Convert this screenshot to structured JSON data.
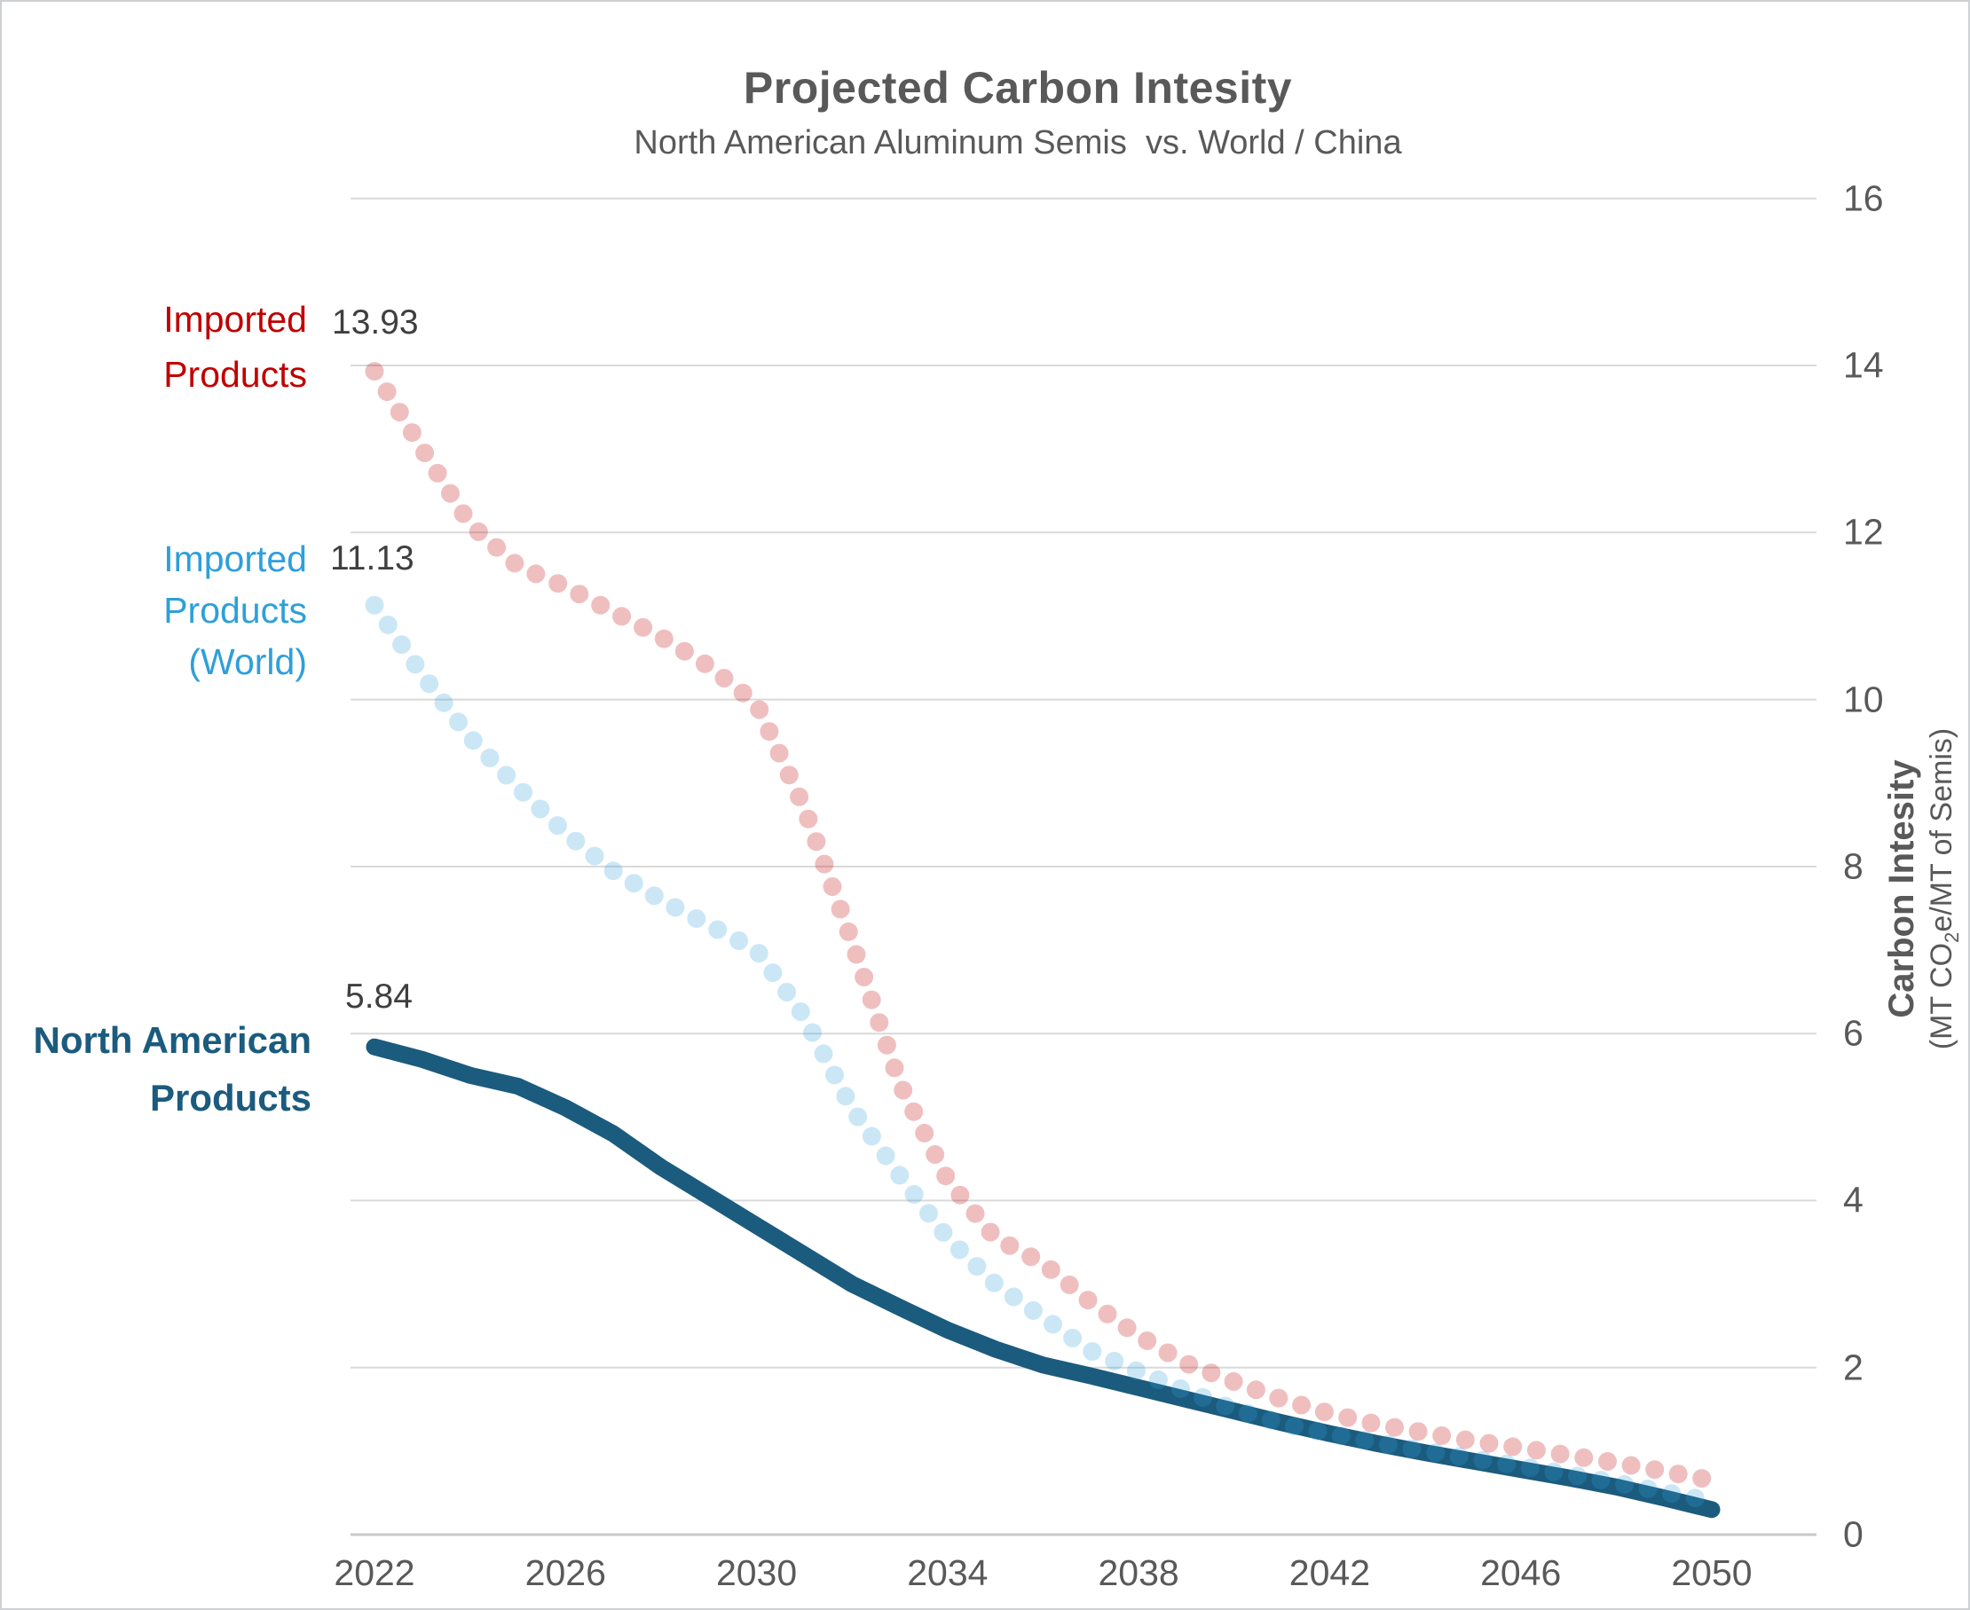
{
  "title": "Projected Carbon Intesity",
  "subtitle": "North American Aluminum Semis  vs. World / China",
  "annotations": {
    "imported_china": {
      "lines": [
        "Imported",
        "Products"
      ],
      "value": "13.93"
    },
    "imported_world": {
      "lines": [
        "Imported",
        "Products",
        "(World)"
      ],
      "value": "11.13"
    },
    "north_american": {
      "lines": [
        "North American",
        "Products"
      ],
      "value": "5.84"
    }
  },
  "y_axis": {
    "title": "Carbon Intesity",
    "subtitle_pre": "(MT CO",
    "subtitle_sub": "2",
    "subtitle_post": "e/MT of Semis)",
    "ticks": [
      0,
      2,
      4,
      6,
      8,
      10,
      12,
      14,
      16
    ],
    "min": 0,
    "max": 16
  },
  "x_axis": {
    "ticks": [
      2022,
      2026,
      2030,
      2034,
      2038,
      2042,
      2046,
      2050
    ]
  },
  "colors": {
    "china": "#C00000",
    "world": "#2E9FDA",
    "north_american": "#1B5B7E",
    "dot_opacity": 0.25,
    "value_text": "#3F3F3F",
    "axis_text": "#595959",
    "gridline": "#D9D9D9",
    "baseline": "#C9C9C9"
  },
  "chart_data": {
    "type": "line",
    "title": "Projected Carbon Intesity",
    "subtitle": "North American Aluminum Semis vs. World / China",
    "xlabel": "",
    "ylabel": "Carbon Intesity (MT CO2e/MT of Semis)",
    "ylim": [
      0,
      16
    ],
    "grid": true,
    "legend_position": "left-annotations",
    "x": [
      2022,
      2023,
      2024,
      2025,
      2026,
      2027,
      2028,
      2029,
      2030,
      2031,
      2032,
      2033,
      2034,
      2035,
      2036,
      2037,
      2038,
      2039,
      2040,
      2041,
      2042,
      2043,
      2044,
      2045,
      2046,
      2047,
      2048,
      2049,
      2050
    ],
    "series": [
      {
        "name": "Imported Products (China)",
        "style": "dotted",
        "color": "#C00000",
        "opacity": 0.25,
        "start_label": 13.93,
        "values": [
          13.93,
          13.0,
          12.1,
          11.6,
          11.35,
          11.05,
          10.75,
          10.4,
          9.95,
          8.7,
          7.1,
          5.4,
          4.25,
          3.55,
          3.25,
          2.78,
          2.38,
          2.05,
          1.83,
          1.62,
          1.45,
          1.32,
          1.22,
          1.12,
          1.04,
          0.95,
          0.86,
          0.76,
          0.65
        ]
      },
      {
        "name": "Imported Products (World)",
        "style": "dotted",
        "color": "#2E9FDA",
        "opacity": 0.25,
        "start_label": 11.13,
        "values": [
          11.13,
          10.3,
          9.55,
          8.95,
          8.4,
          7.95,
          7.6,
          7.3,
          7.0,
          6.2,
          5.1,
          4.3,
          3.55,
          3.0,
          2.6,
          2.2,
          1.95,
          1.72,
          1.5,
          1.33,
          1.21,
          1.1,
          1.0,
          0.91,
          0.82,
          0.72,
          0.62,
          0.51,
          0.4
        ]
      },
      {
        "name": "North American Products",
        "style": "solid",
        "color": "#1B5B7E",
        "opacity": 1,
        "start_label": 5.84,
        "values": [
          5.84,
          5.69,
          5.5,
          5.37,
          5.11,
          4.8,
          4.4,
          4.05,
          3.7,
          3.35,
          3.0,
          2.72,
          2.45,
          2.22,
          2.03,
          1.9,
          1.76,
          1.62,
          1.48,
          1.34,
          1.21,
          1.09,
          0.98,
          0.88,
          0.78,
          0.68,
          0.57,
          0.44,
          0.3
        ]
      }
    ]
  }
}
